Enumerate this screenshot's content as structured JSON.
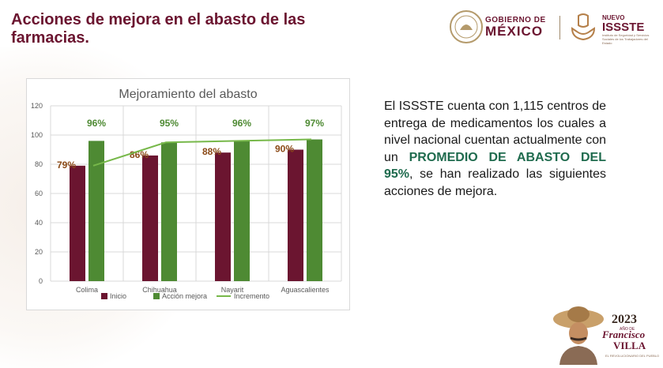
{
  "slide": {
    "title": "Acciones de mejora en el abasto de las farmacias.",
    "description_before": "El ISSSTE cuenta con 1,115 centros de entrega de medicamentos los cuales a nivel nacional cuentan actualmente con un ",
    "description_highlight": "PROMEDIO DE ABASTO DEL 95%",
    "description_after": ", se han realizado las siguientes acciones de mejora."
  },
  "header": {
    "gobierno_top": "GOBIERNO DE",
    "gobierno_bottom": "MÉXICO",
    "issste_top": "NUEVO",
    "issste_bottom": "ISSSTE",
    "issste_sub": "Instituto de Seguridad y Servicios Sociales de los Trabajadores del Estado"
  },
  "footer": {
    "year": "2023",
    "small": "AÑO DE",
    "name1": "Francisco",
    "name2": "VILLA",
    "tag": "EL REVOLUCIONARIO DEL PUEBLO"
  },
  "colors": {
    "title": "#6b1530",
    "bar_inicio": "#6b1530",
    "bar_accion": "#4e8a33",
    "line_incremento": "#77b84a",
    "label_inicio": "#8b4a17",
    "label_accion": "#4e8a33",
    "highlight": "#1f6b4e"
  },
  "chart_data": {
    "type": "bar",
    "title": "Mejoramiento del abasto",
    "categories": [
      "Colima",
      "Chihuahua",
      "Nayarit",
      "Aguascalientes"
    ],
    "series": [
      {
        "name": "Inicio",
        "values": [
          79,
          86,
          88,
          90
        ],
        "labels": [
          "79%",
          "86%",
          "88%",
          "90%"
        ]
      },
      {
        "name": "Acción mejora",
        "values": [
          96,
          95,
          96,
          97
        ],
        "labels": [
          "96%",
          "95%",
          "96%",
          "97%"
        ]
      },
      {
        "name": "Incremento",
        "type": "line",
        "values": [
          79,
          95,
          96,
          97
        ]
      }
    ],
    "ylim": [
      0,
      120
    ],
    "yticks": [
      0,
      20,
      40,
      60,
      80,
      100,
      120
    ],
    "grid": true,
    "legend": "bottom"
  }
}
